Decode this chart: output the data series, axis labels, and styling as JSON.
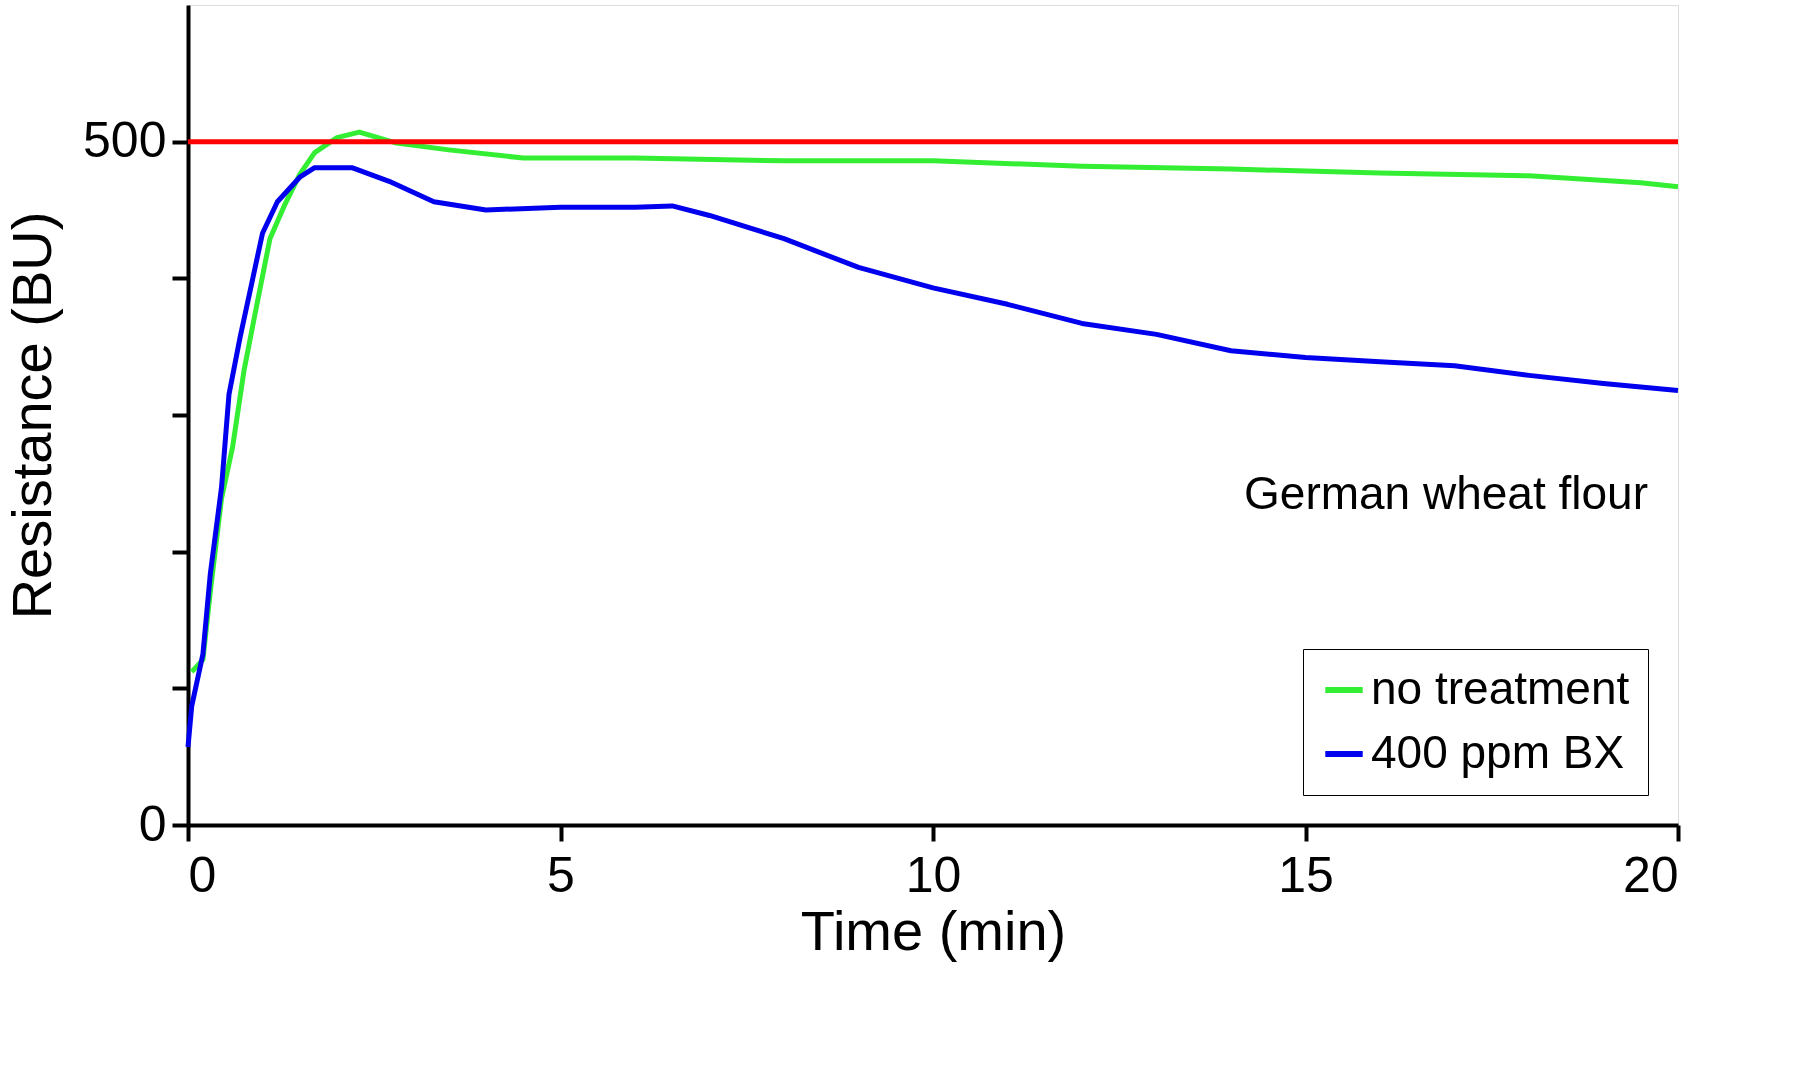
{
  "chart_data": {
    "type": "line",
    "xlabel": "Time (min)",
    "ylabel": "Resistance (BU)",
    "xlim": [
      0,
      20
    ],
    "xticks": [
      0,
      5,
      10,
      15,
      20
    ],
    "ylim": [
      0,
      600
    ],
    "yticks": [
      0,
      {
        "value": 100,
        "label": null
      },
      {
        "value": 200,
        "label": null
      },
      {
        "value": 300,
        "label": null
      },
      {
        "value": 400,
        "label": null
      },
      500
    ],
    "grid": false,
    "legend": "bottom right",
    "line_style": "solid",
    "marker": "none",
    "annotations": [
      "German wheat flour"
    ],
    "ref_lines": [
      {
        "axis": "y",
        "value": 500,
        "label": null,
        "color": "#ff0000"
      }
    ],
    "series": [
      {
        "name": "no treatment",
        "color": "#33ee33",
        "x": [
          0.05,
          0.2,
          0.3,
          0.45,
          0.6,
          0.75,
          0.9,
          1.1,
          1.3,
          1.5,
          1.7,
          2.0,
          2.3,
          2.8,
          3.5,
          4.5,
          6,
          8,
          10,
          12,
          14,
          16,
          18,
          19.5,
          20
        ],
        "values": [
          112,
          121,
          171,
          239,
          277,
          332,
          374,
          429,
          454,
          476,
          492,
          503,
          507,
          499,
          494,
          488,
          488,
          486,
          486,
          482,
          480,
          477,
          475,
          470,
          467
        ]
      },
      {
        "name": "400 ppm BX",
        "color": "#0000ee",
        "x": [
          0,
          0.05,
          0.2,
          0.3,
          0.45,
          0.55,
          0.7,
          0.85,
          1.0,
          1.2,
          1.5,
          1.7,
          2.2,
          2.7,
          3.3,
          4,
          5,
          6,
          6.5,
          7,
          8,
          9,
          10,
          11,
          12,
          13,
          14,
          15,
          16,
          17,
          18,
          19,
          20
        ],
        "values": [
          57,
          87,
          125,
          184,
          247,
          315,
          357,
          395,
          433,
          456,
          474,
          481,
          481,
          471,
          456,
          450,
          452,
          452,
          453,
          446,
          429,
          408,
          393,
          381,
          367,
          359,
          347,
          342,
          339,
          336,
          329,
          323,
          318
        ]
      }
    ]
  }
}
